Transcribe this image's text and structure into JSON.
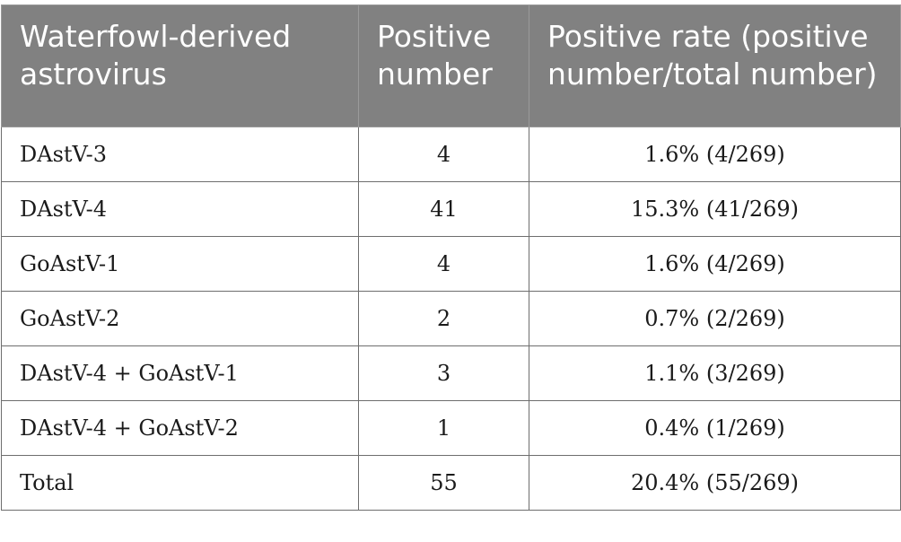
{
  "table": {
    "headers": [
      "Waterfowl-derived astrovirus",
      "Positive number",
      "Positive rate (positive number/total number)"
    ],
    "rows": [
      {
        "virus": "DAstV-3",
        "positive": "4",
        "rate": "1.6% (4/269)"
      },
      {
        "virus": "DAstV-4",
        "positive": "41",
        "rate": "15.3% (41/269)"
      },
      {
        "virus": "GoAstV-1",
        "positive": "4",
        "rate": "1.6% (4/269)"
      },
      {
        "virus": "GoAstV-2",
        "positive": "2",
        "rate": "0.7% (2/269)"
      },
      {
        "virus": "DAstV-4 + GoAstV-1",
        "positive": "3",
        "rate": "1.1% (3/269)"
      },
      {
        "virus": "DAstV-4 + GoAstV-2",
        "positive": "1",
        "rate": "0.4% (1/269)"
      },
      {
        "virus": "Total",
        "positive": "55",
        "rate": "20.4% (55/269)"
      }
    ]
  },
  "colors": {
    "header_bg": "#818181",
    "header_text": "#ffffff",
    "border": "#6e6e6e"
  }
}
